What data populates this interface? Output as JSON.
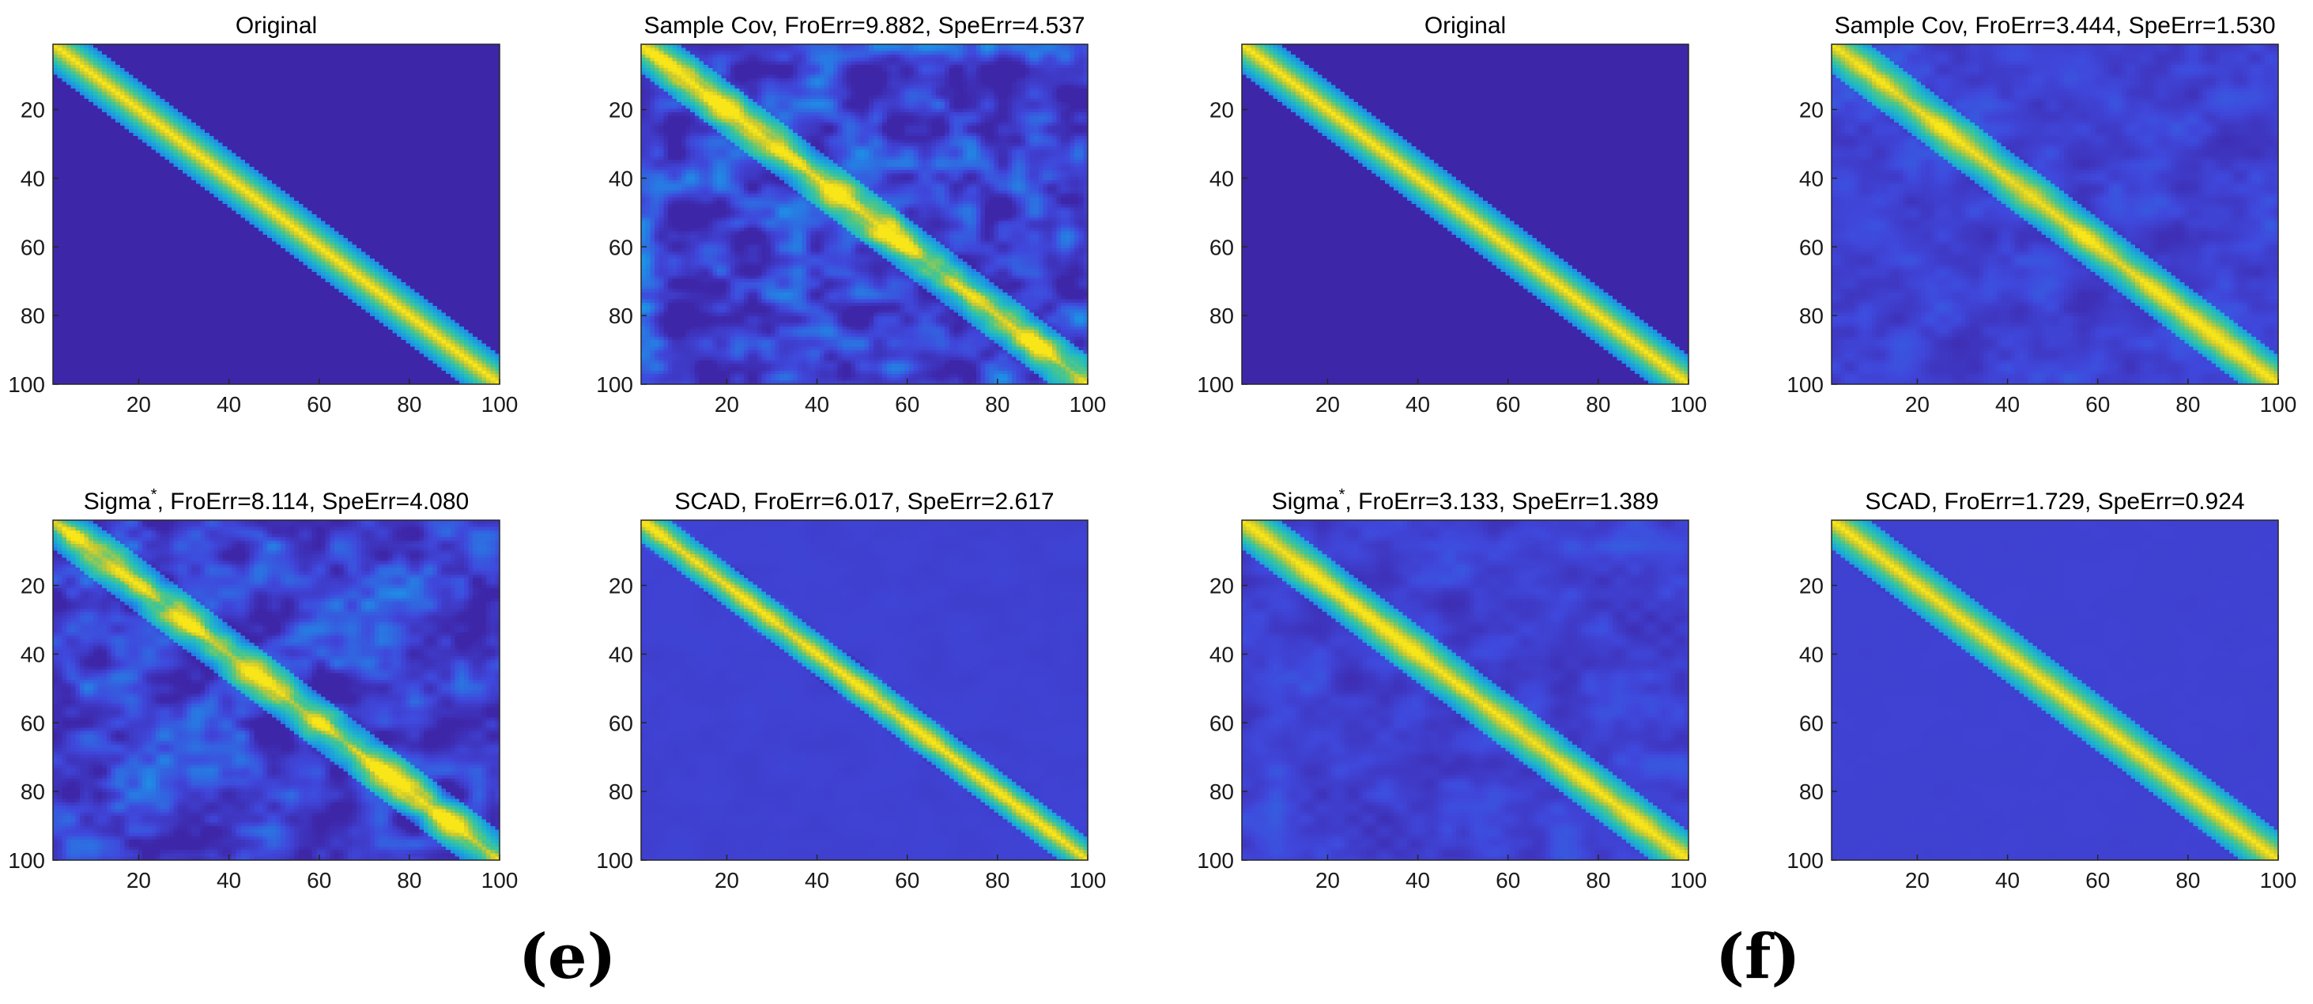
{
  "figure": {
    "sublabels": {
      "e": "(e)",
      "f": "(f)"
    }
  },
  "colors": {
    "background": "#3b2ea6",
    "low": "#3e3fd3",
    "mid": "#1fa8d8",
    "high_mid": "#36c39a",
    "peak": "#f7e61a"
  },
  "chart_data": [
    {
      "type": "heatmap",
      "group": "e",
      "title": "Original",
      "fro_err": null,
      "spe_err": null,
      "matrix_size": 100,
      "xlim": [
        1,
        100
      ],
      "ylim": [
        1,
        100
      ],
      "xticks": [
        20,
        40,
        60,
        80,
        100
      ],
      "yticks": [
        20,
        40,
        60,
        80,
        100
      ],
      "x_tick_labels": [
        "20",
        "40",
        "60",
        "80",
        "100"
      ],
      "y_tick_labels": [
        "20",
        "40",
        "60",
        "80",
        "100"
      ],
      "band_width": 8,
      "noise": 0.0
    },
    {
      "type": "heatmap",
      "group": "e",
      "title": "Sample Cov, FroErr=9.882, SpeErr=4.537",
      "fro_err": 9.882,
      "spe_err": 4.537,
      "matrix_size": 100,
      "xlim": [
        1,
        100
      ],
      "ylim": [
        1,
        100
      ],
      "xticks": [
        20,
        40,
        60,
        80,
        100
      ],
      "yticks": [
        20,
        40,
        60,
        80,
        100
      ],
      "x_tick_labels": [
        "20",
        "40",
        "60",
        "80",
        "100"
      ],
      "y_tick_labels": [
        "20",
        "40",
        "60",
        "80",
        "100"
      ],
      "band_width": 8,
      "noise": 0.34
    },
    {
      "type": "heatmap",
      "group": "f",
      "title": "Original",
      "fro_err": null,
      "spe_err": null,
      "matrix_size": 100,
      "xlim": [
        1,
        100
      ],
      "ylim": [
        1,
        100
      ],
      "xticks": [
        20,
        40,
        60,
        80,
        100
      ],
      "yticks": [
        20,
        40,
        60,
        80,
        100
      ],
      "x_tick_labels": [
        "20",
        "40",
        "60",
        "80",
        "100"
      ],
      "y_tick_labels": [
        "20",
        "40",
        "60",
        "80",
        "100"
      ],
      "band_width": 8,
      "noise": 0.0
    },
    {
      "type": "heatmap",
      "group": "f",
      "title": "Sample Cov, FroErr=3.444, SpeErr=1.530",
      "fro_err": 3.444,
      "spe_err": 1.53,
      "matrix_size": 100,
      "xlim": [
        1,
        100
      ],
      "ylim": [
        1,
        100
      ],
      "xticks": [
        20,
        40,
        60,
        80,
        100
      ],
      "yticks": [
        20,
        40,
        60,
        80,
        100
      ],
      "x_tick_labels": [
        "20",
        "40",
        "60",
        "80",
        "100"
      ],
      "y_tick_labels": [
        "20",
        "40",
        "60",
        "80",
        "100"
      ],
      "band_width": 8,
      "noise": 0.13
    },
    {
      "type": "heatmap",
      "group": "e",
      "title_main": "Sigma",
      "title_sup": "*",
      "title_rest": ", FroErr=8.114, SpeErr=4.080",
      "fro_err": 8.114,
      "spe_err": 4.08,
      "matrix_size": 100,
      "xlim": [
        1,
        100
      ],
      "ylim": [
        1,
        100
      ],
      "xticks": [
        20,
        40,
        60,
        80,
        100
      ],
      "yticks": [
        20,
        40,
        60,
        80,
        100
      ],
      "x_tick_labels": [
        "20",
        "40",
        "60",
        "80",
        "100"
      ],
      "y_tick_labels": [
        "20",
        "40",
        "60",
        "80",
        "100"
      ],
      "band_width": 8,
      "noise": 0.3
    },
    {
      "type": "heatmap",
      "group": "e",
      "title": "SCAD, FroErr=6.017, SpeErr=2.617",
      "fro_err": 6.017,
      "spe_err": 2.617,
      "matrix_size": 100,
      "xlim": [
        1,
        100
      ],
      "ylim": [
        1,
        100
      ],
      "xticks": [
        20,
        40,
        60,
        80,
        100
      ],
      "yticks": [
        20,
        40,
        60,
        80,
        100
      ],
      "x_tick_labels": [
        "20",
        "40",
        "60",
        "80",
        "100"
      ],
      "y_tick_labels": [
        "20",
        "40",
        "60",
        "80",
        "100"
      ],
      "band_width": 6,
      "noise": 0.06
    },
    {
      "type": "heatmap",
      "group": "f",
      "title_main": "Sigma",
      "title_sup": "*",
      "title_rest": ", FroErr=3.133, SpeErr=1.389",
      "fro_err": 3.133,
      "spe_err": 1.389,
      "matrix_size": 100,
      "xlim": [
        1,
        100
      ],
      "ylim": [
        1,
        100
      ],
      "xticks": [
        20,
        40,
        60,
        80,
        100
      ],
      "yticks": [
        20,
        40,
        60,
        80,
        100
      ],
      "x_tick_labels": [
        "20",
        "40",
        "60",
        "80",
        "100"
      ],
      "y_tick_labels": [
        "20",
        "40",
        "60",
        "80",
        "100"
      ],
      "band_width": 8,
      "noise": 0.12
    },
    {
      "type": "heatmap",
      "group": "f",
      "title": "SCAD, FroErr=1.729, SpeErr=0.924",
      "fro_err": 1.729,
      "spe_err": 0.924,
      "matrix_size": 100,
      "xlim": [
        1,
        100
      ],
      "ylim": [
        1,
        100
      ],
      "xticks": [
        20,
        40,
        60,
        80,
        100
      ],
      "yticks": [
        20,
        40,
        60,
        80,
        100
      ],
      "x_tick_labels": [
        "20",
        "40",
        "60",
        "80",
        "100"
      ],
      "y_tick_labels": [
        "20",
        "40",
        "60",
        "80",
        "100"
      ],
      "band_width": 8,
      "noise": 0.02
    }
  ]
}
